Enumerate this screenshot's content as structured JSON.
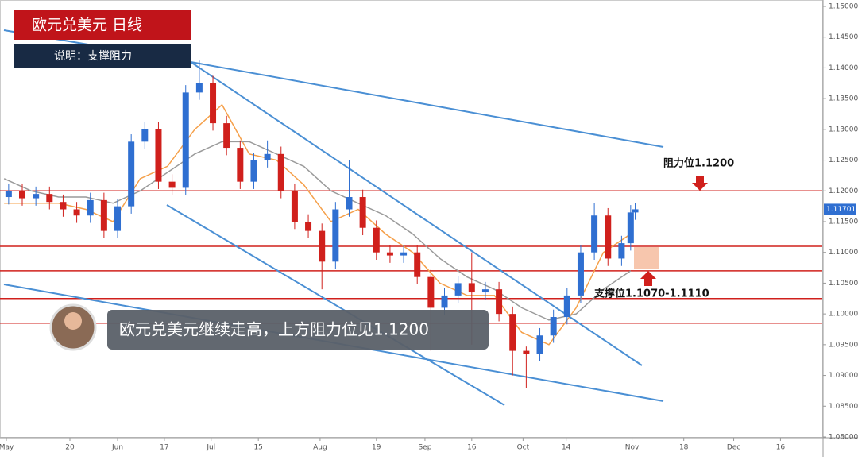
{
  "chart_data": {
    "type": "candlestick",
    "title": "欧元兑美元  日线",
    "subtitle": "说明：支撑阻力",
    "annotations": {
      "resistance": "阻力位1.1200",
      "support": "支撑位1.1070-1.1110",
      "comment": "欧元兑美元继续走高，上方阻力位见1.1200"
    },
    "up_color": "#2f6fd1",
    "down_color": "#d0201c",
    "x": [
      1,
      4,
      7,
      10,
      13,
      16,
      19,
      22,
      25,
      28,
      31,
      34,
      37,
      40,
      43,
      46,
      49,
      52,
      55,
      58,
      61,
      64,
      67,
      70,
      73,
      76,
      79,
      82,
      85,
      88,
      91,
      94,
      97,
      100,
      103,
      106,
      109,
      112,
      115,
      118,
      121,
      124,
      127,
      130,
      133,
      136,
      138,
      139
    ],
    "ohlc": [
      [
        1.119,
        1.1212,
        1.1178,
        1.12
      ],
      [
        1.12,
        1.1212,
        1.1176,
        1.1188
      ],
      [
        1.1188,
        1.1207,
        1.1176,
        1.1195
      ],
      [
        1.1195,
        1.1207,
        1.117,
        1.1182
      ],
      [
        1.1182,
        1.1194,
        1.1158,
        1.117
      ],
      [
        1.117,
        1.1182,
        1.1148,
        1.116
      ],
      [
        1.116,
        1.1197,
        1.1148,
        1.1185
      ],
      [
        1.1185,
        1.1197,
        1.1123,
        1.1135
      ],
      [
        1.1135,
        1.1187,
        1.1123,
        1.1175
      ],
      [
        1.1175,
        1.1292,
        1.1163,
        1.128
      ],
      [
        1.128,
        1.1312,
        1.1268,
        1.13
      ],
      [
        1.13,
        1.1312,
        1.1203,
        1.1215
      ],
      [
        1.1215,
        1.1227,
        1.1193,
        1.1205
      ],
      [
        1.1205,
        1.1372,
        1.1193,
        1.136
      ],
      [
        1.136,
        1.1412,
        1.1348,
        1.1375
      ],
      [
        1.1375,
        1.1387,
        1.1298,
        1.131
      ],
      [
        1.131,
        1.1322,
        1.1258,
        1.127
      ],
      [
        1.127,
        1.1282,
        1.1203,
        1.1215
      ],
      [
        1.1215,
        1.1262,
        1.1203,
        1.125
      ],
      [
        1.125,
        1.1282,
        1.1238,
        1.126
      ],
      [
        1.126,
        1.1272,
        1.1188,
        1.12
      ],
      [
        1.12,
        1.1212,
        1.1138,
        1.115
      ],
      [
        1.115,
        1.1162,
        1.1123,
        1.1135
      ],
      [
        1.1135,
        1.1147,
        1.104,
        1.1085
      ],
      [
        1.1085,
        1.1182,
        1.1073,
        1.117
      ],
      [
        1.117,
        1.125,
        1.1158,
        1.119
      ],
      [
        1.119,
        1.1202,
        1.1128,
        1.114
      ],
      [
        1.114,
        1.1152,
        1.1088,
        1.11
      ],
      [
        1.11,
        1.1112,
        1.1083,
        1.1095
      ],
      [
        1.1095,
        1.1112,
        1.1083,
        1.11
      ],
      [
        1.11,
        1.1112,
        1.1048,
        1.106
      ],
      [
        1.106,
        1.1072,
        1.094,
        1.101
      ],
      [
        1.101,
        1.1042,
        1.0998,
        1.103
      ],
      [
        1.103,
        1.1062,
        1.1018,
        1.105
      ],
      [
        1.105,
        1.11,
        1.095,
        1.1035
      ],
      [
        1.1035,
        1.1052,
        1.1023,
        1.104
      ],
      [
        1.104,
        1.1052,
        1.0988,
        1.1
      ],
      [
        1.1,
        1.1012,
        1.09,
        1.094
      ],
      [
        1.094,
        1.0947,
        1.088,
        1.0935
      ],
      [
        1.0935,
        1.0977,
        1.0923,
        1.0965
      ],
      [
        1.0965,
        1.1007,
        1.0953,
        1.0995
      ],
      [
        1.0995,
        1.1042,
        1.0983,
        1.103
      ],
      [
        1.103,
        1.1112,
        1.1018,
        1.11
      ],
      [
        1.11,
        1.118,
        1.1088,
        1.116
      ],
      [
        1.116,
        1.1172,
        1.1078,
        1.109
      ],
      [
        1.109,
        1.1127,
        1.1078,
        1.1115
      ],
      [
        1.1115,
        1.1177,
        1.1103,
        1.1165
      ],
      [
        1.1165,
        1.118,
        1.1153,
        1.11701
      ]
    ],
    "ma_x": [
      0,
      6,
      12,
      18,
      24,
      30,
      36,
      42,
      48,
      54,
      60,
      66,
      72,
      78,
      84,
      90,
      96,
      102,
      108,
      114,
      120,
      126,
      132,
      138
    ],
    "ma_series": [
      {
        "color": "#f5a04a",
        "values": [
          1.118,
          1.118,
          1.118,
          1.117,
          1.115,
          1.122,
          1.124,
          1.13,
          1.134,
          1.126,
          1.125,
          1.121,
          1.115,
          1.117,
          1.113,
          1.11,
          1.105,
          1.103,
          1.103,
          1.097,
          1.095,
          1.101,
          1.11,
          1.113
        ]
      },
      {
        "color": "#9a9a9a",
        "values": [
          1.122,
          1.12,
          1.119,
          1.119,
          1.118,
          1.12,
          1.123,
          1.126,
          1.128,
          1.128,
          1.126,
          1.124,
          1.12,
          1.118,
          1.116,
          1.113,
          1.109,
          1.106,
          1.104,
          1.101,
          1.099,
          1.1,
          1.104,
          1.107
        ]
      }
    ],
    "levels": [
      1.12,
      1.111,
      1.107,
      1.1025,
      1.0985
    ],
    "level_color": "#d0201c",
    "last_price": {
      "value": 1.11701,
      "label": "1.11701"
    },
    "xlim": [
      -0.9,
      180.2
    ],
    "ylim": [
      1.08,
      1.15103
    ],
    "yticks": [
      {
        "value": 1.08,
        "label": "1.08000"
      },
      {
        "value": 1.085,
        "label": "1.08500"
      },
      {
        "value": 1.09,
        "label": "1.09000"
      },
      {
        "value": 1.095,
        "label": "1.09500"
      },
      {
        "value": 1.1,
        "label": "1.10000"
      },
      {
        "value": 1.105,
        "label": "1.10500"
      },
      {
        "value": 1.11,
        "label": "1.11000"
      },
      {
        "value": 1.115,
        "label": "1.11500"
      },
      {
        "value": 1.12,
        "label": "1.12000"
      },
      {
        "value": 1.125,
        "label": "1.12500"
      },
      {
        "value": 1.13,
        "label": "1.13000"
      },
      {
        "value": 1.135,
        "label": "1.13500"
      },
      {
        "value": 1.14,
        "label": "1.14000"
      },
      {
        "value": 1.145,
        "label": "1.14500"
      },
      {
        "value": 1.15,
        "label": "1.15000"
      }
    ],
    "xticks": [
      {
        "value": 0.5,
        "label": "May"
      },
      {
        "value": 14.5,
        "label": "20"
      },
      {
        "value": 25,
        "label": "Jun"
      },
      {
        "value": 35.3,
        "label": "17"
      },
      {
        "value": 45.6,
        "label": "Jul"
      },
      {
        "value": 56,
        "label": "15"
      },
      {
        "value": 69.6,
        "label": "Aug"
      },
      {
        "value": 82,
        "label": "19"
      },
      {
        "value": 92.7,
        "label": "Sep"
      },
      {
        "value": 103,
        "label": "16"
      },
      {
        "value": 114.3,
        "label": "Oct"
      },
      {
        "value": 123.8,
        "label": "14"
      },
      {
        "value": 138.3,
        "label": "Nov"
      },
      {
        "value": 149.7,
        "label": "18"
      },
      {
        "value": 160.7,
        "label": "Dec"
      },
      {
        "value": 171,
        "label": "16"
      }
    ]
  }
}
